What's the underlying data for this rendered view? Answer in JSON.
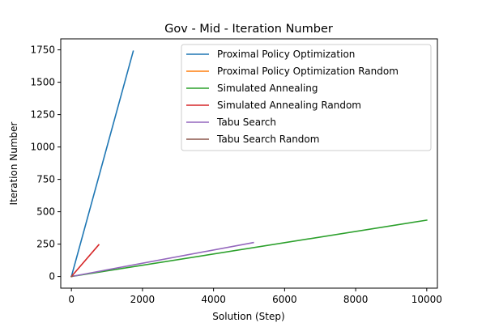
{
  "chart_data": {
    "type": "line",
    "title": "Gov - Mid - Iteration Number",
    "xlabel": "Solution (Step)",
    "ylabel": "Iteration Number",
    "xlim": [
      -300,
      10300
    ],
    "ylim": [
      -90,
      1835
    ],
    "xticks": [
      0,
      2000,
      4000,
      6000,
      8000,
      10000
    ],
    "yticks": [
      0,
      250,
      500,
      750,
      1000,
      1250,
      1500,
      1750
    ],
    "grid": false,
    "legend_position": "top-right",
    "series": [
      {
        "name": "Proximal Policy Optimization",
        "color": "#1f77b4",
        "x": [
          0,
          1740
        ],
        "y": [
          0,
          1740
        ]
      },
      {
        "name": "Proximal Policy Optimization Random",
        "color": "#ff7f0e",
        "x": [
          0,
          40
        ],
        "y": [
          0,
          5
        ]
      },
      {
        "name": "Simulated Annealing",
        "color": "#2ca02c",
        "x": [
          0,
          10000
        ],
        "y": [
          0,
          435
        ]
      },
      {
        "name": "Simulated Annealing Random",
        "color": "#d62728",
        "x": [
          0,
          770
        ],
        "y": [
          0,
          245
        ]
      },
      {
        "name": "Tabu Search",
        "color": "#9467bd",
        "x": [
          0,
          5120
        ],
        "y": [
          0,
          262
        ]
      },
      {
        "name": "Tabu Search Random",
        "color": "#8c564b",
        "x": [
          0,
          40
        ],
        "y": [
          0,
          3
        ]
      }
    ]
  }
}
